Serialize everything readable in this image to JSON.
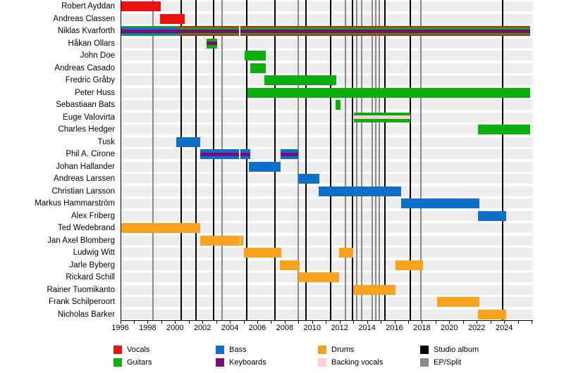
{
  "chart_data": {
    "type": "bar",
    "subtype": "band-members-gantt-timeline",
    "title": "",
    "x_range": [
      1996,
      2026.1
    ],
    "x_ticks": [
      1996,
      1998,
      2000,
      2002,
      2004,
      2006,
      2008,
      2010,
      2012,
      2014,
      2016,
      2018,
      2020,
      2022,
      2024
    ],
    "colors": {
      "vocals": "#ed1212",
      "guitars": "#0bae0b",
      "bass": "#0d6fc9",
      "keyboards": "#7b0b7b",
      "drums": "#f7a11c",
      "backing_vocals": "#f9d0d8",
      "studio_album": "#000000",
      "ep_split": "#8a8a8a"
    },
    "rows": [
      {
        "name": "Robert Ayddan",
        "bars": [
          {
            "start": 1996.0,
            "end": 1998.95,
            "roles": [
              "vocals"
            ]
          }
        ]
      },
      {
        "name": "Andreas Classen",
        "bars": [
          {
            "start": 1998.9,
            "end": 2000.7,
            "roles": [
              "vocals"
            ]
          }
        ]
      },
      {
        "name": "Niklas Kvarforth",
        "bars": [
          {
            "start": 1996.0,
            "end": 2000.24,
            "roles": [
              "guitars",
              "bass",
              "keyboards"
            ]
          },
          {
            "start": 2000.24,
            "end": 2004.64,
            "roles": [
              "vocals",
              "guitars",
              "keyboards"
            ]
          },
          {
            "start": 2004.79,
            "end": 2025.9,
            "roles": [
              "vocals",
              "guitars",
              "keyboards"
            ]
          }
        ]
      },
      {
        "name": "Håkan Ollars",
        "bars": [
          {
            "start": 2002.3,
            "end": 2003.07,
            "roles": [
              "guitars",
              "keyboards"
            ]
          }
        ]
      },
      {
        "name": "John Doe",
        "bars": [
          {
            "start": 2005.08,
            "end": 2006.62,
            "roles": [
              "guitars"
            ]
          }
        ]
      },
      {
        "name": "Andreas Casado",
        "bars": [
          {
            "start": 2005.49,
            "end": 2006.62,
            "roles": [
              "guitars"
            ]
          }
        ]
      },
      {
        "name": "Fredric Gråby",
        "bars": [
          {
            "start": 2006.51,
            "end": 2011.76,
            "roles": [
              "guitars"
            ]
          }
        ]
      },
      {
        "name": "Peter Huss",
        "bars": [
          {
            "start": 2005.28,
            "end": 2025.9,
            "roles": [
              "guitars"
            ]
          }
        ]
      },
      {
        "name": "Sebastiaan Bats",
        "bars": [
          {
            "start": 2011.71,
            "end": 2012.07,
            "roles": [
              "guitars"
            ]
          }
        ]
      },
      {
        "name": "Euge Valovirta",
        "bars": [
          {
            "start": 2013.04,
            "end": 2017.16,
            "roles": [
              "guitars",
              "backing_vocals"
            ]
          }
        ]
      },
      {
        "name": "Charles Hedger",
        "bars": [
          {
            "start": 2022.1,
            "end": 2025.9,
            "roles": [
              "guitars"
            ]
          }
        ]
      },
      {
        "name": "Tusk",
        "bars": [
          {
            "start": 2000.09,
            "end": 2001.81,
            "roles": [
              "bass"
            ]
          }
        ]
      },
      {
        "name": "Phil A. Cirone",
        "bars": [
          {
            "start": 2001.81,
            "end": 2004.64,
            "roles": [
              "bass",
              "keyboards"
            ]
          },
          {
            "start": 2004.79,
            "end": 2005.49,
            "roles": [
              "bass",
              "keyboards"
            ]
          },
          {
            "start": 2007.7,
            "end": 2008.98,
            "roles": [
              "bass",
              "keyboards"
            ]
          }
        ]
      },
      {
        "name": "Johan Hallander",
        "bars": [
          {
            "start": 2005.38,
            "end": 2007.7,
            "roles": [
              "bass"
            ]
          }
        ]
      },
      {
        "name": "Andreas Larssen",
        "bars": [
          {
            "start": 2008.98,
            "end": 2010.52,
            "roles": [
              "bass"
            ]
          }
        ]
      },
      {
        "name": "Christian Larsson",
        "bars": [
          {
            "start": 2010.47,
            "end": 2016.49,
            "roles": [
              "bass"
            ]
          }
        ]
      },
      {
        "name": "Markus Hammarström",
        "bars": [
          {
            "start": 2016.49,
            "end": 2022.2,
            "roles": [
              "bass"
            ]
          }
        ]
      },
      {
        "name": "Alex Friberg",
        "bars": [
          {
            "start": 2022.1,
            "end": 2024.15,
            "roles": [
              "bass"
            ]
          }
        ]
      },
      {
        "name": "Ted Wedebrand",
        "bars": [
          {
            "start": 1996.0,
            "end": 2001.84,
            "roles": [
              "drums"
            ]
          }
        ]
      },
      {
        "name": "Jan Axel Blomberg",
        "bars": [
          {
            "start": 2001.81,
            "end": 2004.71,
            "roles": [
              "drums"
            ]
          },
          {
            "start": 2004.79,
            "end": 2004.97,
            "roles": [
              "drums"
            ]
          }
        ]
      },
      {
        "name": "Ludwig Witt",
        "bars": [
          {
            "start": 2005.02,
            "end": 2007.75,
            "roles": [
              "drums"
            ]
          },
          {
            "start": 2011.96,
            "end": 2012.99,
            "roles": [
              "drums"
            ]
          }
        ]
      },
      {
        "name": "Jarle Byberg",
        "bars": [
          {
            "start": 2007.65,
            "end": 2009.09,
            "roles": [
              "drums"
            ]
          },
          {
            "start": 2016.08,
            "end": 2018.08,
            "roles": [
              "drums"
            ]
          }
        ]
      },
      {
        "name": "Rickard Schill",
        "bars": [
          {
            "start": 2008.98,
            "end": 2011.96,
            "roles": [
              "drums"
            ]
          }
        ]
      },
      {
        "name": "Rainer Tuomikanto",
        "bars": [
          {
            "start": 2012.99,
            "end": 2016.08,
            "roles": [
              "drums"
            ]
          }
        ]
      },
      {
        "name": "Frank Schilperoort",
        "bars": [
          {
            "start": 2019.11,
            "end": 2022.2,
            "roles": [
              "drums"
            ]
          }
        ]
      },
      {
        "name": "Nicholas Barker",
        "bars": [
          {
            "start": 2022.1,
            "end": 2024.15,
            "roles": [
              "drums"
            ]
          }
        ]
      }
    ],
    "lines": {
      "studio_album": [
        2000.45,
        2001.53,
        2002.81,
        2005.23,
        2007.29,
        2009.57,
        2011.35,
        2012.94,
        2015.31,
        2017.16,
        2023.89
      ],
      "ep_split": [
        1998.39,
        2003.43,
        2008.98,
        2012.43,
        2013.25,
        2013.61,
        2014.38,
        2014.64,
        2014.9,
        2017.93
      ]
    },
    "legend": [
      {
        "label": "Vocals",
        "key": "vocals"
      },
      {
        "label": "Guitars",
        "key": "guitars"
      },
      {
        "label": "Bass",
        "key": "bass"
      },
      {
        "label": "Keyboards",
        "key": "keyboards"
      },
      {
        "label": "Drums",
        "key": "drums"
      },
      {
        "label": "Backing vocals",
        "key": "backing_vocals"
      },
      {
        "label": "Studio album",
        "key": "studio_album"
      },
      {
        "label": "EP/Split",
        "key": "ep_split"
      }
    ],
    "legend_position": "bottom",
    "grid": "row-bands"
  }
}
